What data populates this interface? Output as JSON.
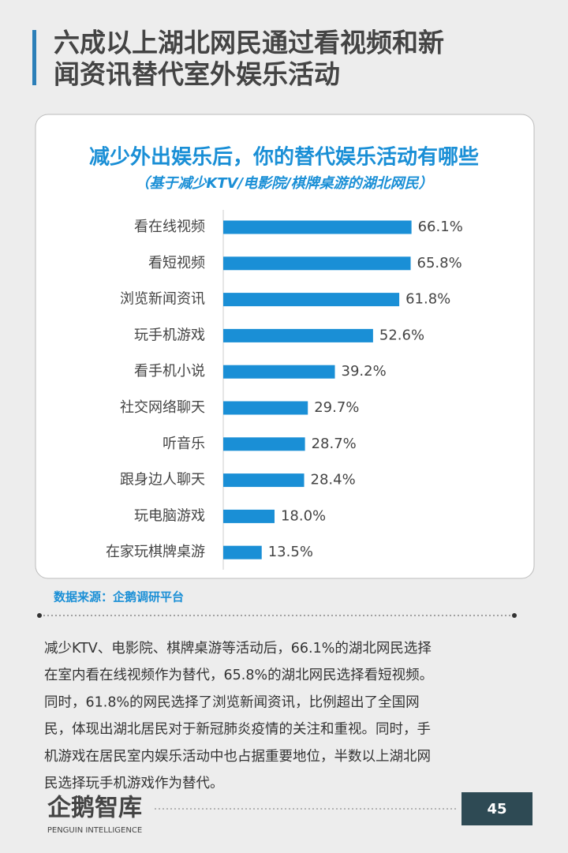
{
  "page_title": [
    "六成以上湖北网民通过看视频和新",
    "闻资讯替代室外娱乐活动"
  ],
  "chart_data": {
    "type": "hbar",
    "title": "减少外出娱乐后，你的替代娱乐活动有哪些",
    "subtitle": "（基于减少KTV/电影院/棋牌桌游的湖北网民）",
    "categories": [
      "看在线视频",
      "看短视频",
      "浏览新闻资讯",
      "玩手机游戏",
      "看手机小说",
      "社交网络聊天",
      "听音乐",
      "跟身边人聊天",
      "玩电脑游戏",
      "在家玩棋牌桌游"
    ],
    "values": [
      66.1,
      65.8,
      61.8,
      52.6,
      39.2,
      29.7,
      28.7,
      28.4,
      18.0,
      13.5
    ],
    "value_labels": [
      "66.1%",
      "65.8%",
      "61.8%",
      "52.6%",
      "39.2%",
      "29.7%",
      "28.7%",
      "28.4%",
      "18.0%",
      "13.5%"
    ],
    "color": "#1a8fd6",
    "xlim": [
      0,
      100
    ]
  },
  "source": "数据来源：企鹅调研平台",
  "body": [
    "减少KTV、电影院、棋牌桌游等活动后，66.1%的湖北网民选择",
    "在室内看在线视频作为替代，65.8%的湖北网民选择看短视频。",
    "同时，61.8%的网民选择了浏览新闻资讯，比例超出了全国网",
    "民，体现出湖北居民对于新冠肺炎疫情的关注和重视。同时，手",
    "机游戏在居民室内娱乐活动中也占据重要地位，半数以上湖北网",
    "民选择玩手机游戏作为替代。"
  ],
  "footer": {
    "logo": "企鹅智库",
    "logo_sub": "PENGUIN INTELLIGENCE",
    "page_number": "45"
  }
}
